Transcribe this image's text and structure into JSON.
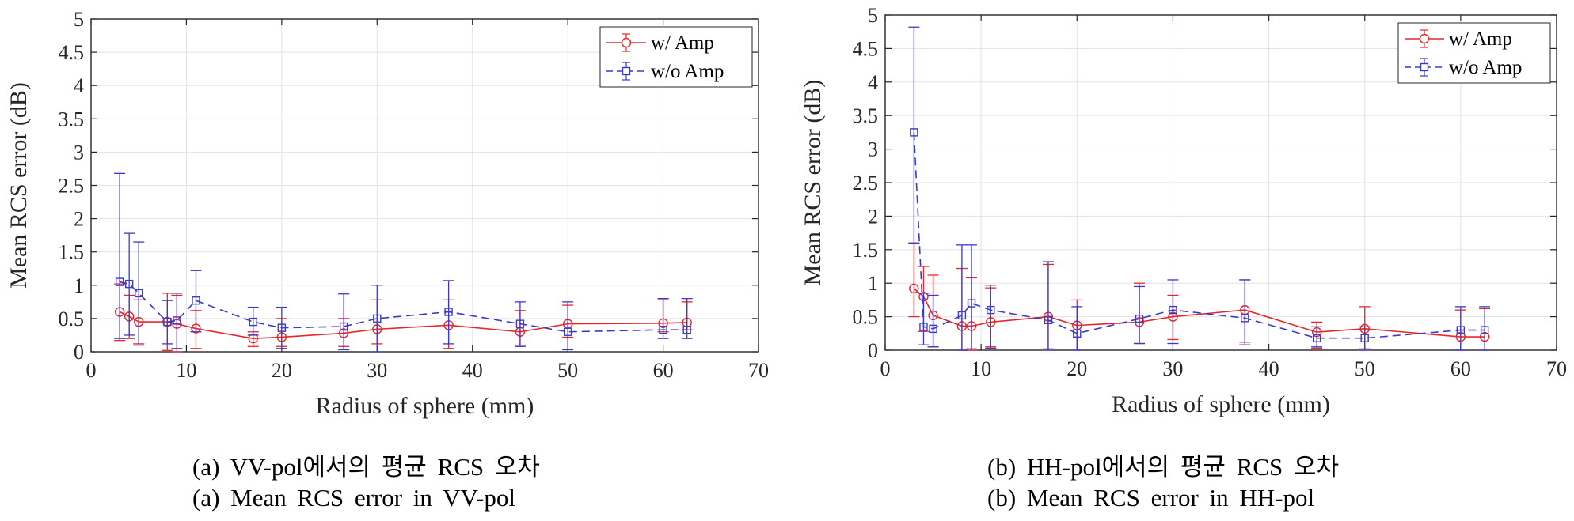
{
  "chart_data": [
    {
      "type": "line",
      "panel": "(a)",
      "xlabel": "Radius of sphere (mm)",
      "ylabel": "Mean RCS error (dB)",
      "xlim": [
        0,
        70
      ],
      "ylim": [
        0,
        5
      ],
      "xticks": [
        "0",
        "10",
        "20",
        "30",
        "40",
        "50",
        "60",
        "70"
      ],
      "yticks": [
        "0",
        "0.5",
        "1",
        "1.5",
        "2",
        "2.5",
        "3",
        "3.5",
        "4",
        "4.5",
        "5"
      ],
      "grid": true,
      "legend": "top-right",
      "x": [
        3,
        4,
        5,
        8,
        9,
        11,
        17,
        20,
        26.5,
        30,
        37.5,
        45,
        50,
        60,
        62.5
      ],
      "series": [
        {
          "name": "w/ Amp",
          "color": "#e8262a",
          "marker": "circle",
          "style": "solid",
          "values": [
            0.6,
            0.53,
            0.45,
            0.45,
            0.42,
            0.35,
            0.2,
            0.22,
            0.28,
            0.34,
            0.4,
            0.3,
            0.42,
            0.43,
            0.44
          ],
          "err_low": [
            0.17,
            0.2,
            0.12,
            0.02,
            0.0,
            0.05,
            0.08,
            0.08,
            0.08,
            0.12,
            0.05,
            0.1,
            0.22,
            0.3,
            0.33
          ],
          "err_high": [
            1.02,
            0.85,
            0.78,
            0.88,
            0.85,
            0.62,
            0.3,
            0.5,
            0.5,
            0.78,
            0.78,
            0.62,
            0.7,
            0.78,
            0.75
          ]
        },
        {
          "name": "w/o Amp",
          "color": "#3a3ac8",
          "marker": "square",
          "style": "dashed",
          "values": [
            1.05,
            1.02,
            0.88,
            0.45,
            0.47,
            0.77,
            0.45,
            0.36,
            0.38,
            0.5,
            0.6,
            0.42,
            0.3,
            0.33,
            0.33
          ],
          "err_low": [
            0.2,
            0.25,
            0.1,
            0.12,
            0.05,
            0.3,
            0.25,
            0.05,
            0.03,
            0.0,
            0.12,
            0.08,
            0.03,
            0.2,
            0.2
          ],
          "err_high": [
            2.68,
            1.78,
            1.65,
            0.77,
            0.88,
            1.22,
            0.67,
            0.67,
            0.87,
            1.0,
            1.07,
            0.75,
            0.75,
            0.8,
            0.8
          ]
        }
      ]
    },
    {
      "type": "line",
      "panel": "(b)",
      "xlabel": "Radius of sphere (mm)",
      "ylabel": "Mean RCS error (dB)",
      "xlim": [
        0,
        70
      ],
      "ylim": [
        0,
        5
      ],
      "xticks": [
        "0",
        "10",
        "20",
        "30",
        "40",
        "50",
        "60",
        "70"
      ],
      "yticks": [
        "0",
        "0.5",
        "1",
        "1.5",
        "2",
        "2.5",
        "3",
        "3.5",
        "4",
        "4.5",
        "5"
      ],
      "grid": true,
      "legend": "top-right",
      "x": [
        3,
        4,
        5,
        8,
        9,
        11,
        17,
        20,
        26.5,
        30,
        37.5,
        45,
        50,
        60,
        62.5
      ],
      "series": [
        {
          "name": "w/ Amp",
          "color": "#e8262a",
          "marker": "circle",
          "style": "solid",
          "values": [
            0.92,
            0.8,
            0.52,
            0.36,
            0.36,
            0.42,
            0.5,
            0.37,
            0.42,
            0.5,
            0.6,
            0.27,
            0.32,
            0.2,
            0.2
          ],
          "err_low": [
            0.5,
            0.28,
            0.05,
            0.0,
            0.0,
            0.05,
            0.02,
            0.0,
            0.1,
            0.16,
            0.12,
            0.03,
            0.02,
            0.0,
            0.0
          ],
          "err_high": [
            1.6,
            1.25,
            1.12,
            1.22,
            1.08,
            0.93,
            1.28,
            0.75,
            1.0,
            0.82,
            1.05,
            0.42,
            0.65,
            0.6,
            0.62
          ]
        },
        {
          "name": "w/o Amp",
          "color": "#3a3ac8",
          "marker": "square",
          "style": "dashed",
          "values": [
            3.25,
            0.35,
            0.32,
            0.52,
            0.7,
            0.6,
            0.45,
            0.25,
            0.47,
            0.6,
            0.48,
            0.18,
            0.18,
            0.3,
            0.3
          ],
          "err_low": [
            1.6,
            0.08,
            0.05,
            0.0,
            0.02,
            0.03,
            0.0,
            0.0,
            0.1,
            0.1,
            0.08,
            0.05,
            0.0,
            0.0,
            0.0
          ],
          "err_high": [
            4.82,
            0.85,
            0.82,
            1.57,
            1.57,
            0.97,
            1.32,
            0.65,
            0.95,
            1.05,
            1.05,
            0.35,
            0.35,
            0.65,
            0.65
          ]
        }
      ]
    }
  ],
  "captions": {
    "a_korean": "(a) VV-pol에서의 평균 RCS 오차",
    "a_english": "(a) Mean RCS error in VV-pol",
    "b_korean": "(b) HH-pol에서의 평균 RCS 오차",
    "b_english": "(b) Mean RCS error in HH-pol"
  }
}
